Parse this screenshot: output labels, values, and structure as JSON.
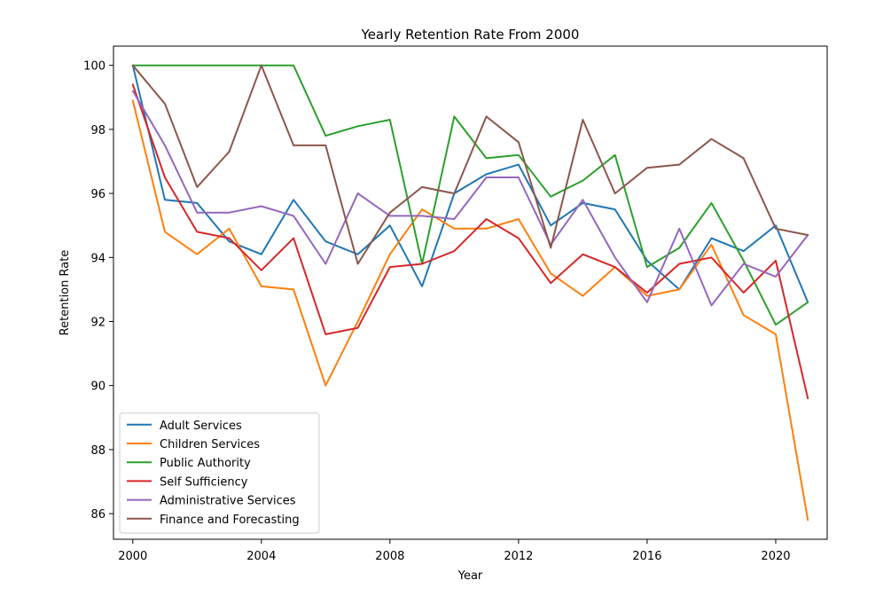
{
  "chart_data": {
    "type": "line",
    "title": "Yearly Retention Rate From 2000",
    "xlabel": "Year",
    "ylabel": "Retention Rate",
    "xlim": [
      1999.4,
      2021.6
    ],
    "ylim": [
      85.2,
      100.6
    ],
    "xticks": [
      2000,
      2004,
      2008,
      2012,
      2016,
      2020
    ],
    "yticks": [
      86,
      88,
      90,
      92,
      94,
      96,
      98,
      100
    ],
    "grid": false,
    "legend_position": "lower-left",
    "x": [
      2000,
      2001,
      2002,
      2003,
      2004,
      2005,
      2006,
      2007,
      2008,
      2009,
      2010,
      2011,
      2012,
      2013,
      2014,
      2015,
      2016,
      2017,
      2018,
      2019,
      2020,
      2021
    ],
    "series": [
      {
        "name": "Adult Services",
        "color": "#1f77b4",
        "values": [
          100.0,
          95.8,
          95.7,
          94.5,
          94.1,
          95.8,
          94.5,
          94.1,
          95.0,
          93.1,
          96.0,
          96.6,
          96.9,
          95.0,
          95.7,
          95.5,
          93.9,
          93.0,
          94.6,
          94.2,
          95.0,
          92.6
        ]
      },
      {
        "name": "Children Services",
        "color": "#ff7f0e",
        "values": [
          98.9,
          94.8,
          94.1,
          94.9,
          93.1,
          93.0,
          90.0,
          92.0,
          94.1,
          95.5,
          94.9,
          94.9,
          95.2,
          93.5,
          92.8,
          93.7,
          92.8,
          93.0,
          94.4,
          92.2,
          91.6,
          85.8
        ]
      },
      {
        "name": "Public Authority",
        "color": "#2ca02c",
        "values": [
          100.0,
          100.0,
          100.0,
          100.0,
          100.0,
          100.0,
          97.8,
          98.1,
          98.3,
          93.8,
          98.4,
          97.1,
          97.2,
          95.9,
          96.4,
          97.2,
          93.7,
          94.3,
          95.7,
          93.9,
          91.9,
          92.6
        ]
      },
      {
        "name": "Self Sufficiency",
        "color": "#d62728",
        "values": [
          99.4,
          96.5,
          94.8,
          94.6,
          93.6,
          94.6,
          91.6,
          91.8,
          93.7,
          93.8,
          94.2,
          95.2,
          94.6,
          93.2,
          94.1,
          93.7,
          92.9,
          93.8,
          94.0,
          92.9,
          93.9,
          89.6
        ]
      },
      {
        "name": "Administrative Services",
        "color": "#9467bd",
        "values": [
          99.2,
          97.5,
          95.4,
          95.4,
          95.6,
          95.3,
          93.8,
          96.0,
          95.3,
          95.3,
          95.2,
          96.5,
          96.5,
          94.4,
          95.8,
          94.0,
          92.6,
          94.9,
          92.5,
          93.8,
          93.4,
          94.7
        ]
      },
      {
        "name": "Finance and Forecasting",
        "color": "#8c564b",
        "values": [
          100.0,
          98.8,
          96.2,
          97.3,
          100.0,
          97.5,
          97.5,
          93.8,
          95.4,
          96.2,
          96.0,
          98.4,
          97.6,
          94.3,
          98.3,
          96.0,
          96.8,
          96.9,
          97.7,
          97.1,
          94.9,
          94.7
        ]
      }
    ]
  }
}
